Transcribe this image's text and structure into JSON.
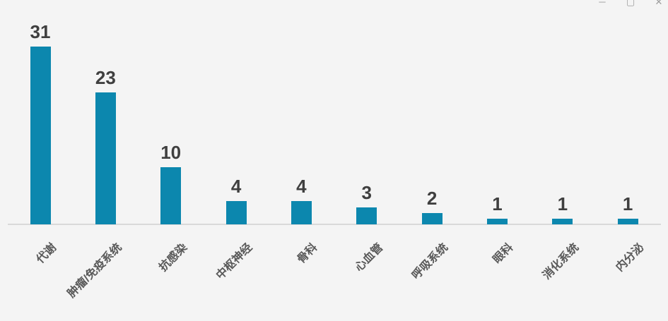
{
  "window": {
    "controls": [
      {
        "name": "minimize",
        "glyph": "─"
      },
      {
        "name": "maximize",
        "glyph": "▢"
      },
      {
        "name": "close",
        "glyph": "✕"
      }
    ]
  },
  "chart_data": {
    "type": "bar",
    "title": "",
    "xlabel": "",
    "ylabel": "",
    "categories": [
      "代谢",
      "肿瘤/免疫系统",
      "抗感染",
      "中枢神经",
      "骨科",
      "心血管",
      "呼吸系统",
      "眼科",
      "消化系统",
      "内分泌"
    ],
    "values": [
      31,
      23,
      10,
      4,
      4,
      3,
      2,
      1,
      1,
      1
    ],
    "ylim": [
      0,
      31
    ],
    "grid": false,
    "legend": false,
    "data_labels": true,
    "category_label_angle_deg": 45,
    "colors": {
      "bar": "#0c87ae",
      "value_label": "#3f3f3f",
      "category_label": "#595959",
      "axis_line": "#d9d9d9",
      "background": "#f4f4f4",
      "window_controls": "#9c9c9c"
    }
  }
}
